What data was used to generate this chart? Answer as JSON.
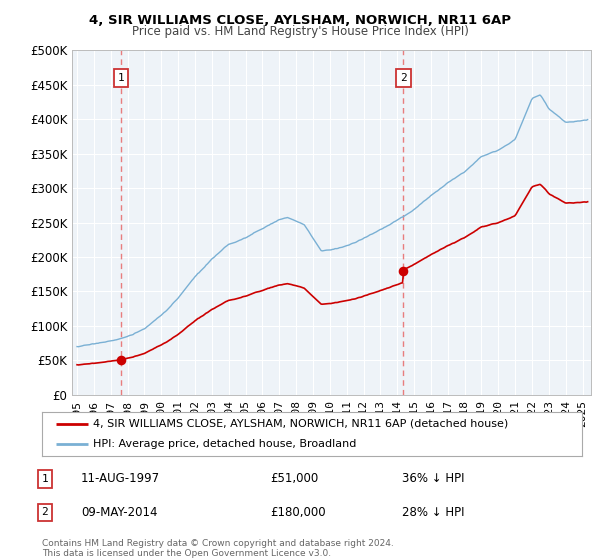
{
  "title": "4, SIR WILLIAMS CLOSE, AYLSHAM, NORWICH, NR11 6AP",
  "subtitle": "Price paid vs. HM Land Registry's House Price Index (HPI)",
  "x_start": 1994.7,
  "x_end": 2025.5,
  "y_min": 0,
  "y_max": 500000,
  "y_ticks": [
    0,
    50000,
    100000,
    150000,
    200000,
    250000,
    300000,
    350000,
    400000,
    450000,
    500000
  ],
  "y_tick_labels": [
    "£0",
    "£50K",
    "£100K",
    "£150K",
    "£200K",
    "£250K",
    "£300K",
    "£350K",
    "£400K",
    "£450K",
    "£500K"
  ],
  "transaction1_x": 1997.614,
  "transaction1_y": 51000,
  "transaction1_label": "1",
  "transaction2_x": 2014.36,
  "transaction2_y": 180000,
  "transaction2_label": "2",
  "price_line_color": "#cc0000",
  "hpi_line_color": "#7ab0d4",
  "vline_color": "#e87070",
  "background_color": "#ffffff",
  "plot_bg_color": "#eef3f8",
  "grid_color": "#ffffff",
  "legend_label1": "4, SIR WILLIAMS CLOSE, AYLSHAM, NORWICH, NR11 6AP (detached house)",
  "legend_label2": "HPI: Average price, detached house, Broadland",
  "footer": "Contains HM Land Registry data © Crown copyright and database right 2024.\nThis data is licensed under the Open Government Licence v3.0.",
  "x_tick_years": [
    1995,
    1996,
    1997,
    1998,
    1999,
    2000,
    2001,
    2002,
    2003,
    2004,
    2005,
    2006,
    2007,
    2008,
    2009,
    2010,
    2011,
    2012,
    2013,
    2014,
    2015,
    2016,
    2017,
    2018,
    2019,
    2020,
    2021,
    2022,
    2023,
    2024,
    2025
  ]
}
